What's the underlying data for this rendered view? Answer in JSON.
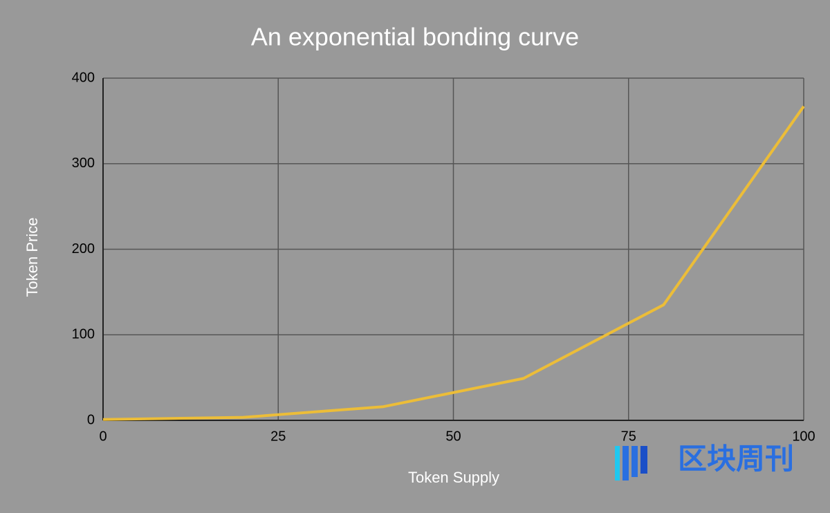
{
  "chart_data": {
    "type": "line",
    "title": "An exponential bonding curve",
    "x_label": "Token Supply",
    "y_label": "Token Price",
    "x": [
      0,
      20,
      40,
      60,
      80,
      100
    ],
    "series": [
      {
        "name": "Token Price",
        "color": "#ecbd38",
        "values": [
          1,
          3.5,
          16,
          49,
          135,
          367
        ]
      }
    ],
    "xlim": [
      0,
      100
    ],
    "xticks": [
      0,
      25,
      50,
      75,
      100
    ],
    "ylim": [
      0,
      400
    ],
    "yticks": [
      0,
      100,
      200,
      300,
      400
    ],
    "grid": true,
    "watermark": "区块周刊"
  }
}
